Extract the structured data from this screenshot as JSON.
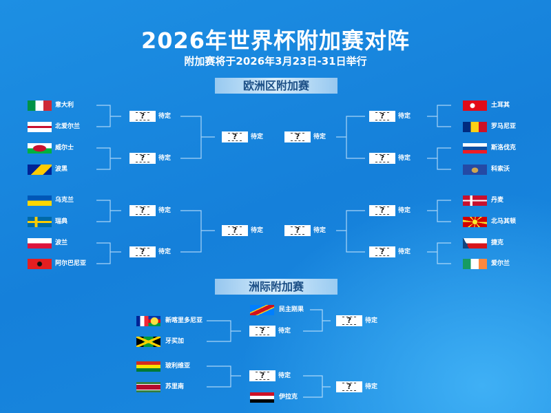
{
  "title": "2026年世界杯附加赛对阵",
  "subtitle": "附加赛将于2026年3月23日-31日举行",
  "europe": {
    "header": "欧洲区附加赛",
    "left_teams": [
      {
        "name": "意大利",
        "flag": "it"
      },
      {
        "name": "北爱尔兰",
        "flag": "nir"
      },
      {
        "name": "威尔士",
        "flag": "wal"
      },
      {
        "name": "波黑",
        "flag": "bih"
      },
      {
        "name": "乌克兰",
        "flag": "ua"
      },
      {
        "name": "瑞典",
        "flag": "se"
      },
      {
        "name": "波兰",
        "flag": "pl"
      },
      {
        "name": "阿尔巴尼亚",
        "flag": "al"
      }
    ],
    "right_teams": [
      {
        "name": "土耳其",
        "flag": "tr"
      },
      {
        "name": "罗马尼亚",
        "flag": "ro"
      },
      {
        "name": "斯洛伐克",
        "flag": "sk"
      },
      {
        "name": "科索沃",
        "flag": "xk"
      },
      {
        "name": "丹麦",
        "flag": "dk"
      },
      {
        "name": "北马其顿",
        "flag": "mk"
      },
      {
        "name": "捷克",
        "flag": "cz"
      },
      {
        "name": "爱尔兰",
        "flag": "ie"
      }
    ]
  },
  "intercontinental": {
    "header": "洲际附加赛",
    "left_teams": [
      {
        "name": "新喀里多尼亚",
        "flag": "nc"
      },
      {
        "name": "牙买加",
        "flag": "jm"
      },
      {
        "name": "玻利维亚",
        "flag": "bo"
      },
      {
        "name": "苏里南",
        "flag": "sr"
      }
    ],
    "seeded": [
      {
        "name": "民主刚果",
        "flag": "cd"
      },
      {
        "name": "伊拉克",
        "flag": "iq"
      }
    ]
  },
  "slot": {
    "mark": "?",
    "label": "待定"
  }
}
